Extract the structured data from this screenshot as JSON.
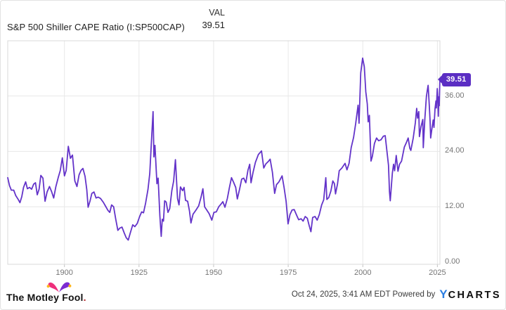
{
  "header": {
    "title": "S&P 500 Shiller CAPE Ratio (I:SP500CAP)",
    "column_label": "VAL",
    "value": "39.51"
  },
  "chart_data": {
    "type": "line",
    "title": "S&P 500 Shiller CAPE Ratio (I:SP500CAP)",
    "series_name": "S&P 500 Shiller CAPE Ratio",
    "latest_label": "39.51",
    "latest_value": 39.51,
    "x_domain": [
      1881,
      2025.85
    ],
    "y_domain": [
      0,
      47.95
    ],
    "grid": true,
    "legend_position": "top",
    "line_color": "#6333c9",
    "badge_color": "#5b2ec3",
    "x_ticks": [
      {
        "value": 1900,
        "label": "1900"
      },
      {
        "value": 1925,
        "label": "1925"
      },
      {
        "value": 1950,
        "label": "1950"
      },
      {
        "value": 1975,
        "label": "1975"
      },
      {
        "value": 2000,
        "label": "2000"
      },
      {
        "value": 2025,
        "label": "2025"
      }
    ],
    "y_ticks": [
      {
        "value": 0,
        "label": "0.00"
      },
      {
        "value": 12,
        "label": "12.00"
      },
      {
        "value": 24,
        "label": "24.00"
      },
      {
        "value": 36,
        "label": "36.00"
      }
    ],
    "points": [
      [
        1881.0,
        18.3
      ],
      [
        1881.6,
        16.6
      ],
      [
        1882.2,
        15.6
      ],
      [
        1883.0,
        15.6
      ],
      [
        1883.7,
        14.4
      ],
      [
        1884.5,
        13.6
      ],
      [
        1885.1,
        12.9
      ],
      [
        1885.7,
        14.2
      ],
      [
        1886.3,
        16.2
      ],
      [
        1887.0,
        17.4
      ],
      [
        1887.6,
        15.9
      ],
      [
        1888.3,
        16.2
      ],
      [
        1889.0,
        15.8
      ],
      [
        1889.7,
        16.9
      ],
      [
        1890.3,
        17.2
      ],
      [
        1890.9,
        14.6
      ],
      [
        1891.5,
        15.8
      ],
      [
        1892.1,
        18.8
      ],
      [
        1892.8,
        18.2
      ],
      [
        1893.5,
        13.2
      ],
      [
        1894.2,
        15.2
      ],
      [
        1895.0,
        16.4
      ],
      [
        1895.7,
        15.3
      ],
      [
        1896.4,
        13.9
      ],
      [
        1897.1,
        16.3
      ],
      [
        1897.9,
        18.3
      ],
      [
        1898.6,
        19.8
      ],
      [
        1899.3,
        22.6
      ],
      [
        1900.0,
        18.7
      ],
      [
        1900.6,
        19.9
      ],
      [
        1901.3,
        25.1
      ],
      [
        1902.0,
        22.5
      ],
      [
        1902.7,
        23.2
      ],
      [
        1903.5,
        17.6
      ],
      [
        1904.2,
        16.4
      ],
      [
        1904.9,
        18.9
      ],
      [
        1905.6,
        19.9
      ],
      [
        1906.2,
        20.3
      ],
      [
        1906.9,
        18.6
      ],
      [
        1907.5,
        15.7
      ],
      [
        1907.95,
        11.9
      ],
      [
        1908.6,
        13.3
      ],
      [
        1909.2,
        14.9
      ],
      [
        1909.9,
        15.2
      ],
      [
        1910.6,
        13.9
      ],
      [
        1911.3,
        14.1
      ],
      [
        1912.1,
        13.8
      ],
      [
        1913.0,
        13.0
      ],
      [
        1913.8,
        12.1
      ],
      [
        1914.6,
        11.2
      ],
      [
        1915.2,
        10.8
      ],
      [
        1915.8,
        12.4
      ],
      [
        1916.5,
        12.0
      ],
      [
        1917.2,
        9.3
      ],
      [
        1917.9,
        6.9
      ],
      [
        1918.6,
        7.4
      ],
      [
        1919.3,
        7.6
      ],
      [
        1920.0,
        6.4
      ],
      [
        1920.7,
        5.3
      ],
      [
        1921.4,
        4.8
      ],
      [
        1922.1,
        6.4
      ],
      [
        1922.9,
        8.1
      ],
      [
        1923.6,
        7.7
      ],
      [
        1924.4,
        8.4
      ],
      [
        1925.2,
        9.9
      ],
      [
        1925.9,
        10.9
      ],
      [
        1926.5,
        10.7
      ],
      [
        1927.2,
        12.8
      ],
      [
        1928.0,
        15.8
      ],
      [
        1928.6,
        19.2
      ],
      [
        1929.2,
        26.5
      ],
      [
        1929.7,
        32.6
      ],
      [
        1930.0,
        22.8
      ],
      [
        1930.35,
        25.3
      ],
      [
        1931.0,
        17.0
      ],
      [
        1931.4,
        18.2
      ],
      [
        1932.0,
        10.0
      ],
      [
        1932.45,
        5.6
      ],
      [
        1932.8,
        9.3
      ],
      [
        1933.2,
        8.9
      ],
      [
        1933.6,
        13.3
      ],
      [
        1934.1,
        13.0
      ],
      [
        1934.7,
        10.8
      ],
      [
        1935.3,
        11.6
      ],
      [
        1936.0,
        15.5
      ],
      [
        1936.6,
        17.6
      ],
      [
        1937.2,
        22.2
      ],
      [
        1937.9,
        13.8
      ],
      [
        1938.4,
        12.4
      ],
      [
        1938.9,
        16.3
      ],
      [
        1939.6,
        15.5
      ],
      [
        1940.1,
        16.2
      ],
      [
        1940.6,
        13.4
      ],
      [
        1941.3,
        13.2
      ],
      [
        1941.9,
        11.1
      ],
      [
        1942.4,
        8.5
      ],
      [
        1943.1,
        10.4
      ],
      [
        1944.0,
        11.2
      ],
      [
        1945.0,
        12.2
      ],
      [
        1945.8,
        14.1
      ],
      [
        1946.4,
        15.9
      ],
      [
        1947.0,
        12.0
      ],
      [
        1947.7,
        11.3
      ],
      [
        1948.5,
        10.5
      ],
      [
        1949.4,
        9.1
      ],
      [
        1950.1,
        10.8
      ],
      [
        1950.9,
        10.9
      ],
      [
        1951.7,
        12.0
      ],
      [
        1952.5,
        12.6
      ],
      [
        1953.1,
        13.1
      ],
      [
        1953.8,
        11.9
      ],
      [
        1954.6,
        13.8
      ],
      [
        1955.3,
        16.2
      ],
      [
        1956.0,
        18.3
      ],
      [
        1956.7,
        17.3
      ],
      [
        1957.4,
        16.2
      ],
      [
        1957.95,
        13.7
      ],
      [
        1958.7,
        15.8
      ],
      [
        1959.4,
        18.0
      ],
      [
        1960.1,
        18.2
      ],
      [
        1960.8,
        17.2
      ],
      [
        1961.5,
        19.9
      ],
      [
        1962.1,
        21.2
      ],
      [
        1962.55,
        17.2
      ],
      [
        1963.2,
        19.4
      ],
      [
        1964.0,
        21.6
      ],
      [
        1965.0,
        23.3
      ],
      [
        1966.05,
        24.1
      ],
      [
        1966.8,
        20.4
      ],
      [
        1967.5,
        21.3
      ],
      [
        1968.3,
        21.8
      ],
      [
        1968.95,
        22.3
      ],
      [
        1969.7,
        19.5
      ],
      [
        1970.45,
        14.9
      ],
      [
        1971.1,
        16.8
      ],
      [
        1971.9,
        17.4
      ],
      [
        1972.95,
        18.7
      ],
      [
        1973.6,
        16.2
      ],
      [
        1974.3,
        13.2
      ],
      [
        1974.95,
        8.3
      ],
      [
        1975.6,
        10.3
      ],
      [
        1976.3,
        11.3
      ],
      [
        1977.0,
        11.4
      ],
      [
        1977.8,
        10.2
      ],
      [
        1978.5,
        9.2
      ],
      [
        1979.3,
        9.4
      ],
      [
        1980.0,
        8.9
      ],
      [
        1980.7,
        9.9
      ],
      [
        1981.4,
        9.5
      ],
      [
        1982.0,
        8.0
      ],
      [
        1982.6,
        6.6
      ],
      [
        1983.2,
        9.7
      ],
      [
        1984.0,
        9.9
      ],
      [
        1984.7,
        9.1
      ],
      [
        1985.4,
        10.3
      ],
      [
        1986.2,
        12.4
      ],
      [
        1986.9,
        13.5
      ],
      [
        1987.6,
        18.3
      ],
      [
        1987.95,
        13.6
      ],
      [
        1988.6,
        14.0
      ],
      [
        1989.3,
        15.4
      ],
      [
        1989.95,
        17.6
      ],
      [
        1990.5,
        17.0
      ],
      [
        1990.85,
        14.8
      ],
      [
        1991.5,
        16.9
      ],
      [
        1992.1,
        19.8
      ],
      [
        1993.0,
        20.4
      ],
      [
        1994.05,
        21.4
      ],
      [
        1994.7,
        20.0
      ],
      [
        1995.4,
        21.4
      ],
      [
        1996.1,
        24.8
      ],
      [
        1996.9,
        27.0
      ],
      [
        1997.6,
        30.0
      ],
      [
        1998.4,
        34.0
      ],
      [
        1998.75,
        30.1
      ],
      [
        1999.3,
        41.0
      ],
      [
        1999.95,
        44.2
      ],
      [
        2000.5,
        42.3
      ],
      [
        2001.0,
        36.9
      ],
      [
        2001.5,
        34.3
      ],
      [
        2001.8,
        30.4
      ],
      [
        2002.2,
        31.8
      ],
      [
        2002.75,
        21.9
      ],
      [
        2003.2,
        22.9
      ],
      [
        2003.9,
        25.7
      ],
      [
        2004.6,
        26.9
      ],
      [
        2005.3,
        26.3
      ],
      [
        2006.1,
        26.5
      ],
      [
        2006.9,
        27.3
      ],
      [
        2007.5,
        27.4
      ],
      [
        2008.1,
        24.0
      ],
      [
        2008.6,
        21.0
      ],
      [
        2008.95,
        15.3
      ],
      [
        2009.2,
        13.3
      ],
      [
        2009.9,
        19.3
      ],
      [
        2010.3,
        21.2
      ],
      [
        2010.65,
        19.8
      ],
      [
        2011.2,
        23.1
      ],
      [
        2011.8,
        19.7
      ],
      [
        2012.3,
        21.2
      ],
      [
        2013.0,
        21.9
      ],
      [
        2013.9,
        24.9
      ],
      [
        2014.6,
        25.9
      ],
      [
        2015.2,
        26.9
      ],
      [
        2015.75,
        24.7
      ],
      [
        2016.1,
        24.2
      ],
      [
        2016.9,
        26.9
      ],
      [
        2017.6,
        30.2
      ],
      [
        2018.05,
        33.3
      ],
      [
        2018.35,
        31.2
      ],
      [
        2018.75,
        32.6
      ],
      [
        2018.98,
        27.2
      ],
      [
        2019.5,
        29.3
      ],
      [
        2020.1,
        30.9
      ],
      [
        2020.27,
        24.8
      ],
      [
        2020.8,
        31.2
      ],
      [
        2021.3,
        35.8
      ],
      [
        2021.6,
        37.2
      ],
      [
        2021.9,
        38.3
      ],
      [
        2022.3,
        33.8
      ],
      [
        2022.55,
        30.5
      ],
      [
        2022.75,
        26.9
      ],
      [
        2023.1,
        28.6
      ],
      [
        2023.6,
        30.8
      ],
      [
        2023.85,
        29.2
      ],
      [
        2024.2,
        33.2
      ],
      [
        2024.5,
        34.9
      ],
      [
        2024.65,
        33.4
      ],
      [
        2024.95,
        37.6
      ],
      [
        2025.1,
        36.0
      ],
      [
        2025.3,
        31.6
      ],
      [
        2025.5,
        35.8
      ],
      [
        2025.62,
        33.9
      ],
      [
        2025.82,
        39.51
      ]
    ]
  },
  "footer": {
    "fool_text_1": "The Motley Fool",
    "fool_dot": ".",
    "timestamp": "Oct 24, 2025, 3:41 AM EDT Powered by",
    "ycharts_y": "Y",
    "ycharts_rest": "CHARTS"
  },
  "colors": {
    "line": "#6333c9",
    "badge": "#5b2ec3",
    "grid": "#e8e8e8",
    "plot_border": "#d8d8d8",
    "axis_text": "#757575",
    "ycharts_blue": "#2a7de1",
    "fool_pink": "#ee2f7b",
    "fool_purple": "#7c2bd1",
    "fool_gold": "#ffb71b"
  }
}
